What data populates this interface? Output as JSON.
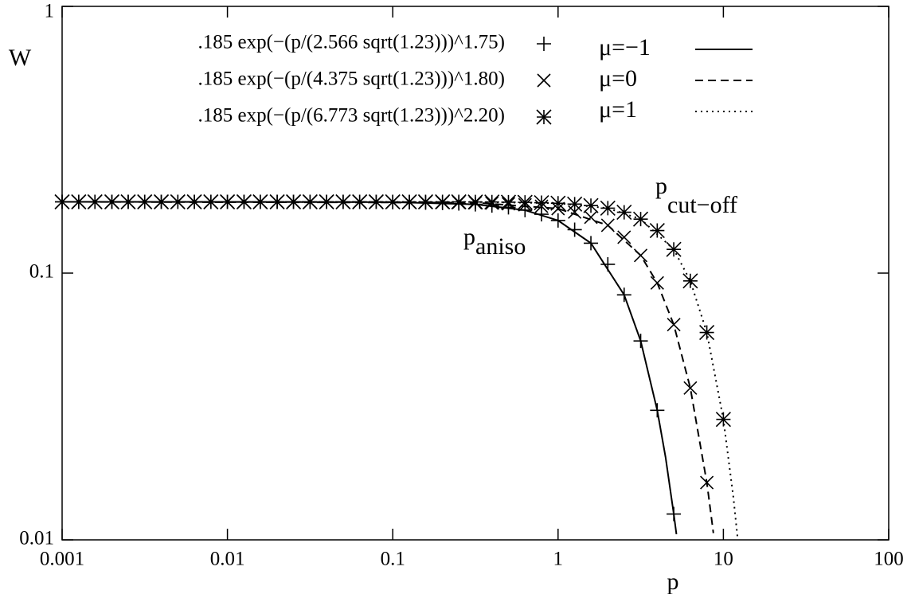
{
  "chart_data": {
    "type": "line",
    "x_label": "p",
    "y_label": "W",
    "xlog": true,
    "ylog": true,
    "xlim": [
      0.001,
      100
    ],
    "ylim": [
      0.01,
      1
    ],
    "xticks": [
      0.001,
      0.01,
      0.1,
      1,
      10,
      100
    ],
    "yticks": [
      0.01,
      0.1,
      1
    ],
    "annotations": [
      {
        "text": "p",
        "sub": "aniso"
      },
      {
        "text": "p",
        "sub": "cut−off"
      }
    ],
    "series": [
      {
        "name": ".185 exp(−(p/(2.566 sqrt(1.23)))^1.75)",
        "style": "marker",
        "marker": "+",
        "color": "#000000",
        "x": [
          0.001,
          0.00126,
          0.00158,
          0.002,
          0.00251,
          0.00316,
          0.00398,
          0.00501,
          0.00631,
          0.00794,
          0.01,
          0.0126,
          0.0158,
          0.02,
          0.0251,
          0.0316,
          0.0398,
          0.0501,
          0.0631,
          0.0794,
          0.1,
          0.126,
          0.158,
          0.2,
          0.251,
          0.316,
          0.398,
          0.501,
          0.631,
          0.794,
          1,
          1.26,
          1.58,
          2,
          2.51,
          3.16,
          3.98,
          5.01
        ],
        "values": [
          0.185,
          0.185,
          0.185,
          0.185,
          0.185,
          0.185,
          0.185,
          0.185,
          0.185,
          0.185,
          0.185,
          0.185,
          0.185,
          0.185,
          0.185,
          0.185,
          0.185,
          0.185,
          0.185,
          0.185,
          0.1845,
          0.1842,
          0.1838,
          0.1832,
          0.1824,
          0.1811,
          0.1792,
          0.1764,
          0.1722,
          0.1662,
          0.1575,
          0.1455,
          0.1295,
          0.1079,
          0.0829,
          0.0557,
          0.0306,
          0.0125
        ]
      },
      {
        "name": ".185 exp(−(p/(4.375 sqrt(1.23)))^1.80)",
        "style": "marker",
        "marker": "x",
        "color": "#000000",
        "x": [
          0.001,
          0.00126,
          0.00158,
          0.002,
          0.00251,
          0.00316,
          0.00398,
          0.00501,
          0.00631,
          0.00794,
          0.01,
          0.0126,
          0.0158,
          0.02,
          0.0251,
          0.0316,
          0.0398,
          0.0501,
          0.0631,
          0.0794,
          0.1,
          0.126,
          0.158,
          0.2,
          0.251,
          0.316,
          0.398,
          0.501,
          0.631,
          0.794,
          1,
          1.26,
          1.58,
          2,
          2.51,
          3.16,
          3.98,
          5.01,
          6.31,
          7.94
        ],
        "values": [
          0.185,
          0.185,
          0.185,
          0.185,
          0.185,
          0.185,
          0.185,
          0.185,
          0.185,
          0.185,
          0.185,
          0.185,
          0.185,
          0.185,
          0.185,
          0.185,
          0.185,
          0.185,
          0.185,
          0.185,
          0.1848,
          0.1847,
          0.1846,
          0.1844,
          0.1841,
          0.1837,
          0.183,
          0.1819,
          0.1804,
          0.178,
          0.1745,
          0.1694,
          0.162,
          0.1511,
          0.1363,
          0.1165,
          0.0919,
          0.0641,
          0.0371,
          0.0164
        ]
      },
      {
        "name": ".185 exp(−(p/(6.773 sqrt(1.23)))^2.20)",
        "style": "marker",
        "marker": "*",
        "color": "#000000",
        "x": [
          0.001,
          0.00126,
          0.00158,
          0.002,
          0.00251,
          0.00316,
          0.00398,
          0.00501,
          0.00631,
          0.00794,
          0.01,
          0.0126,
          0.0158,
          0.02,
          0.0251,
          0.0316,
          0.0398,
          0.0501,
          0.0631,
          0.0794,
          0.1,
          0.126,
          0.158,
          0.2,
          0.251,
          0.316,
          0.398,
          0.501,
          0.631,
          0.794,
          1,
          1.26,
          1.58,
          2,
          2.51,
          3.16,
          3.98,
          5.01,
          6.31,
          7.94,
          10
        ],
        "values": [
          0.185,
          0.185,
          0.185,
          0.185,
          0.185,
          0.185,
          0.185,
          0.185,
          0.185,
          0.185,
          0.185,
          0.185,
          0.185,
          0.185,
          0.185,
          0.185,
          0.185,
          0.185,
          0.185,
          0.185,
          0.185,
          0.185,
          0.185,
          0.185,
          0.185,
          0.1848,
          0.1847,
          0.1845,
          0.1842,
          0.1837,
          0.1828,
          0.1814,
          0.1791,
          0.1752,
          0.1691,
          0.1594,
          0.1444,
          0.1227,
          0.0935,
          0.0599,
          0.0283
        ]
      },
      {
        "name": "μ=−1",
        "style": "line",
        "dash": "solid",
        "color": "#000000",
        "x": [
          0.001,
          0.1,
          0.316,
          0.631,
          1,
          1.58,
          2.51,
          3.16,
          3.98,
          4.47,
          5.01,
          5.2
        ],
        "values": [
          0.185,
          0.1845,
          0.1811,
          0.1722,
          0.1575,
          0.1295,
          0.0829,
          0.0557,
          0.0306,
          0.0204,
          0.0125,
          0.0105
        ]
      },
      {
        "name": "μ=0",
        "style": "line",
        "dash": "dashed",
        "color": "#000000",
        "x": [
          0.001,
          0.316,
          1,
          2,
          3.16,
          3.98,
          5.01,
          6.31,
          7.94,
          8.2,
          8.7
        ],
        "values": [
          0.185,
          0.1837,
          0.1745,
          0.1511,
          0.1165,
          0.0919,
          0.0641,
          0.0371,
          0.0164,
          0.0141,
          0.0106
        ]
      },
      {
        "name": "μ=1",
        "style": "line",
        "dash": "dotted",
        "color": "#000000",
        "x": [
          0.001,
          0.316,
          1,
          2,
          3.16,
          5.01,
          6.31,
          7.94,
          10,
          11.5,
          12.2
        ],
        "values": [
          0.185,
          0.1848,
          0.1828,
          0.1752,
          0.1594,
          0.1227,
          0.0935,
          0.0599,
          0.0283,
          0.0144,
          0.0101
        ]
      }
    ]
  }
}
